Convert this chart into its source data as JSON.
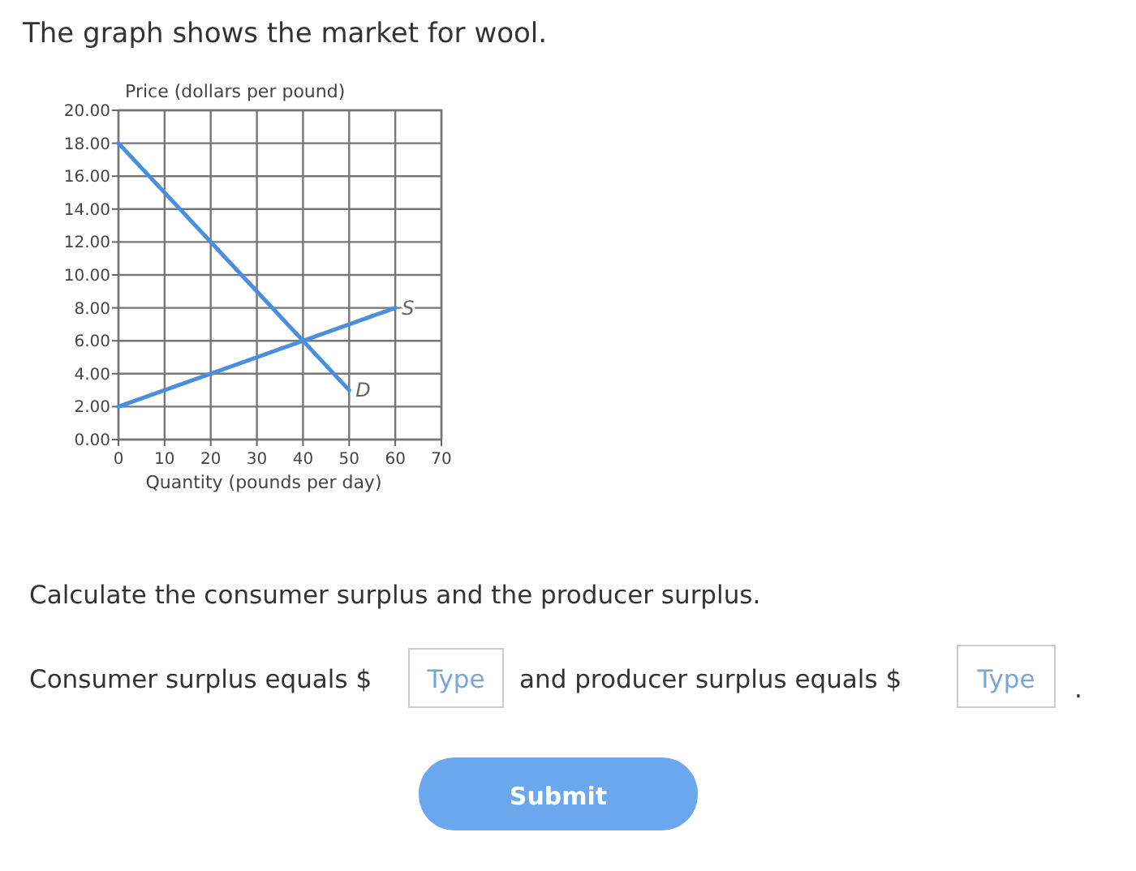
{
  "chart_data": {
    "type": "line",
    "title": "The graph shows the market for wool.",
    "ylabel": "Price (dollars per pound)",
    "xlabel": "Quantity (pounds per day)",
    "series": [
      {
        "name": "D",
        "color": "#4a8fdf",
        "x": [
          0,
          50
        ],
        "values": [
          18,
          3
        ]
      },
      {
        "name": "S",
        "color": "#4a8fdf",
        "x": [
          0,
          60
        ],
        "values": [
          2,
          8
        ]
      }
    ],
    "xlim": [
      0,
      70
    ],
    "xticks": [
      0,
      10,
      20,
      30,
      40,
      50,
      60,
      70
    ],
    "ylim": [
      0,
      20
    ],
    "yticks": [
      {
        "value": 0,
        "label": "0.00"
      },
      {
        "value": 2,
        "label": "2.00"
      },
      {
        "value": 4,
        "label": "4.00"
      },
      {
        "value": 6,
        "label": "6.00"
      },
      {
        "value": 8,
        "label": "8.00"
      },
      {
        "value": 10,
        "label": "10.00"
      },
      {
        "value": 12,
        "label": "12.00"
      },
      {
        "value": 14,
        "label": "14.00"
      },
      {
        "value": 16,
        "label": "16.00"
      },
      {
        "value": 18,
        "label": "18.00"
      },
      {
        "value": 20,
        "label": "20.00"
      }
    ],
    "grid": true,
    "marker": "none",
    "line_style": "solid",
    "annotations": [
      "Calculate the consumer surplus and the producer surplus.",
      "Consumer surplus equals $",
      "Type",
      "and producer surplus equals $",
      "Type",
      ".",
      "Submit"
    ]
  }
}
